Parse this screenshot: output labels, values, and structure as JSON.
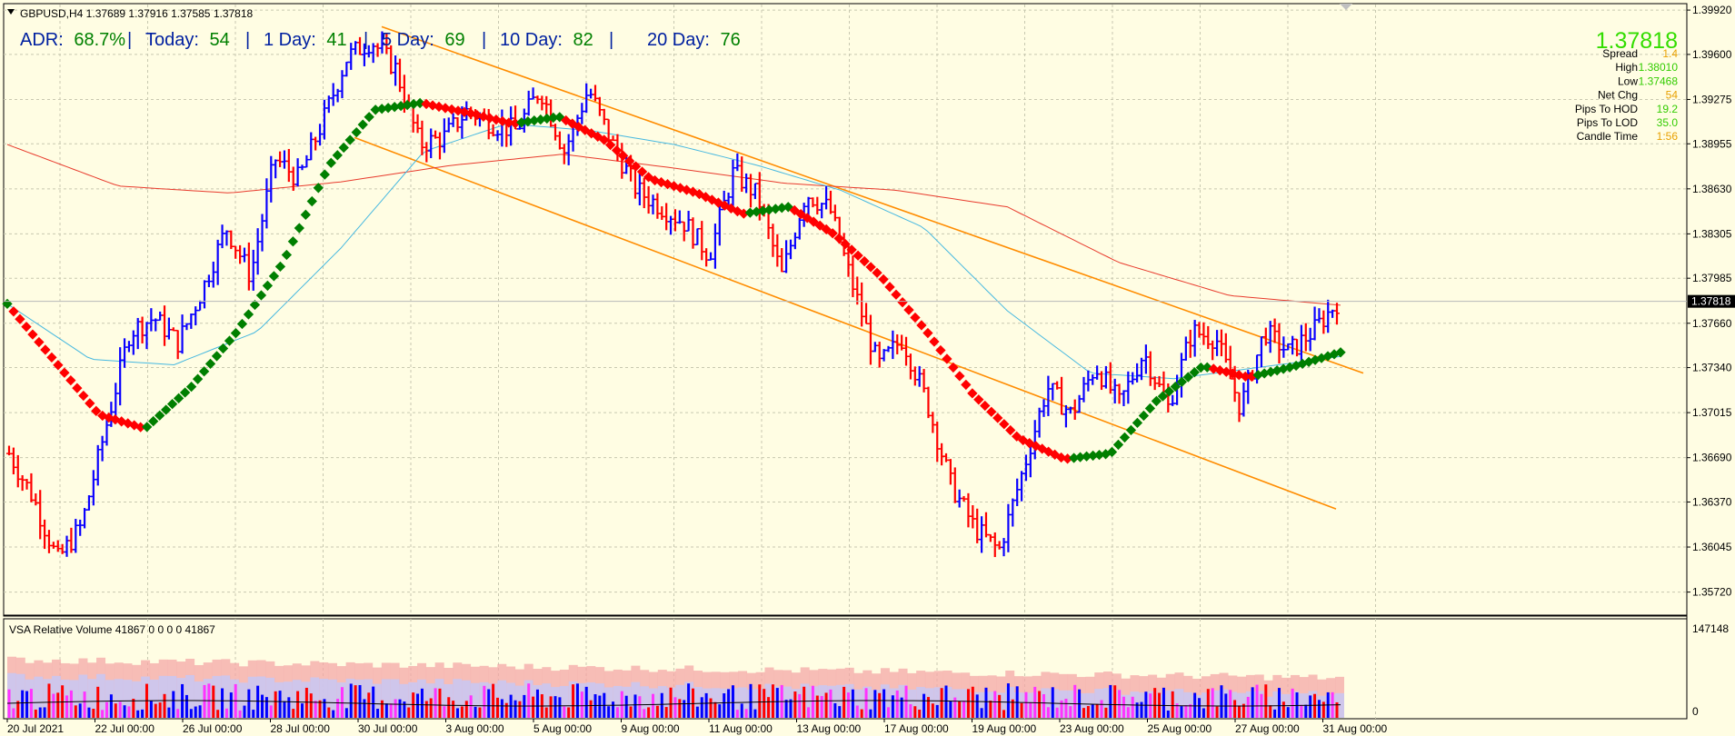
{
  "header": {
    "symbol_line": "GBPUSD,H4  1.37689 1.37916 1.37585 1.37818"
  },
  "adr_panel": {
    "adr_label": "ADR:",
    "adr_value": "68.7%",
    "today_label": "Today:",
    "today_value": "54",
    "day1_label": "1 Day:",
    "day1_value": "41",
    "day5_label": "5 Day:",
    "day5_value": "69",
    "day10_label": "10 Day:",
    "day10_value": "82",
    "day20_label": "20 Day:",
    "day20_value": "76",
    "sep": "|"
  },
  "info_panel": {
    "price": "1.37818",
    "rows": [
      {
        "label": "Spread",
        "value": "1.4",
        "color": "#e8a000"
      },
      {
        "label": "High",
        "value": "1.38010",
        "color": "#33cc00"
      },
      {
        "label": "Low",
        "value": "1.37468",
        "color": "#33cc00"
      },
      {
        "label": "Net Chg",
        "value": "54",
        "color": "#e8a000"
      },
      {
        "label": "Pips To HOD",
        "value": "19.2",
        "color": "#33cc00"
      },
      {
        "label": "Pips To LOD",
        "value": "35.0",
        "color": "#33cc00"
      },
      {
        "label": "Candle Time",
        "value": "1:56",
        "color": "#e8a000"
      }
    ]
  },
  "colors": {
    "background": "#fffde3",
    "bull_bar": "#0a00ff",
    "bear_bar": "#ff0000",
    "ma_up": "#007f00",
    "ma_down": "#ff0000",
    "ma_slow": "#e83a2c",
    "ma_fast": "#46b8e0",
    "channel": "#ff8c00",
    "grid": "#c8c8b0"
  },
  "chart_data": {
    "type": "ohlc",
    "symbol": "GBPUSD",
    "timeframe": "H4",
    "ylim": [
      1.3556,
      1.3996
    ],
    "yticks": [
      "1.39920",
      "1.39600",
      "1.39275",
      "1.38955",
      "1.38630",
      "1.38305",
      "1.37985",
      "1.37660",
      "1.37340",
      "1.37015",
      "1.36690",
      "1.36370",
      "1.36045",
      "1.35720"
    ],
    "current_price": "1.37818",
    "x_labels": [
      "20 Jul 2021",
      "22 Jul 00:00",
      "26 Jul 00:00",
      "28 Jul 00:00",
      "30 Jul 00:00",
      "3 Aug 00:00",
      "5 Aug 00:00",
      "9 Aug 00:00",
      "11 Aug 00:00",
      "13 Aug 00:00",
      "17 Aug 00:00",
      "19 Aug 00:00",
      "23 Aug 00:00",
      "25 Aug 00:00",
      "27 Aug 00:00",
      "31 Aug 00:00"
    ],
    "price_path": [
      1.3672,
      1.364,
      1.3595,
      1.362,
      1.369,
      1.376,
      1.377,
      1.3752,
      1.379,
      1.3835,
      1.38,
      1.3885,
      1.387,
      1.3912,
      1.3958,
      1.397,
      1.395,
      1.3895,
      1.39,
      1.392,
      1.391,
      1.3905,
      1.3935,
      1.389,
      1.3935,
      1.3895,
      1.3862,
      1.385,
      1.3838,
      1.3815,
      1.3875,
      1.3858,
      1.38,
      1.386,
      1.3848,
      1.379,
      1.3735,
      1.3755,
      1.371,
      1.365,
      1.3618,
      1.3602,
      1.366,
      1.372,
      1.37,
      1.3735,
      1.3708,
      1.3745,
      1.3705,
      1.376,
      1.3755,
      1.3705,
      1.376,
      1.3745,
      1.376,
      1.3781
    ],
    "ma_fast": [
      1.378,
      1.374,
      1.3736,
      1.376,
      1.382,
      1.389,
      1.391,
      1.3905,
      1.3895,
      1.388,
      1.3862,
      1.3835,
      1.3775,
      1.373,
      1.3726,
      1.3734,
      1.3742
    ],
    "ma_slow": [
      1.3895,
      1.3865,
      1.386,
      1.3868,
      1.388,
      1.3888,
      1.3878,
      1.3867,
      1.3862,
      1.385,
      1.381,
      1.3786,
      1.3779
    ],
    "ma_signal": [
      1.378,
      1.374,
      1.37,
      1.369,
      1.372,
      1.376,
      1.381,
      1.388,
      1.392,
      1.3925,
      1.3918,
      1.391,
      1.3915,
      1.3898,
      1.387,
      1.386,
      1.3845,
      1.385,
      1.383,
      1.38,
      1.376,
      1.3715,
      1.3683,
      1.3668,
      1.3672,
      1.371,
      1.3735,
      1.3727,
      1.3735,
      1.3745
    ],
    "channel_upper": [
      [
        1.398,
        0.0
      ],
      [
        1.373,
        1.0
      ]
    ],
    "channel_lower": [
      [
        1.39,
        0.0
      ],
      [
        1.3632,
        1.0
      ]
    ],
    "indicator": {
      "title": "VSA Relative Volume 41867 0 0 0 0 41867",
      "max_label": "147148",
      "zero_label": "0"
    }
  }
}
